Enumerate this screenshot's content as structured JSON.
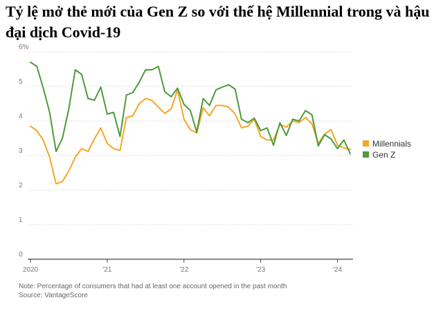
{
  "title": "Tỷ lệ mở thẻ mới của Gen Z so với thế hệ Millennial trong và hậu đại dịch Covid-19",
  "note": "Note: Percentage of consumers that had at least one account opened in the past month",
  "source": "Source: VantageScore",
  "chart_data": {
    "type": "line",
    "title": "Tỷ lệ mở thẻ mới của Gen Z so với thế hệ Millennial trong và hậu đại dịch Covid-19",
    "unit": "%",
    "y_ticks": [
      "6%",
      "5",
      "4",
      "3",
      "2",
      "1",
      "0"
    ],
    "x_ticks": [
      "2020",
      "'21",
      "'22",
      "'23",
      "'24"
    ],
    "ylim": [
      0,
      6
    ],
    "grid": "horizontal dotted",
    "legend_position": "right",
    "x": [
      "2020-01",
      "2020-02",
      "2020-03",
      "2020-04",
      "2020-05",
      "2020-06",
      "2020-07",
      "2020-08",
      "2020-09",
      "2020-10",
      "2020-11",
      "2020-12",
      "2021-01",
      "2021-02",
      "2021-03",
      "2021-04",
      "2021-05",
      "2021-06",
      "2021-07",
      "2021-08",
      "2021-09",
      "2021-10",
      "2021-11",
      "2021-12",
      "2022-01",
      "2022-02",
      "2022-03",
      "2022-04",
      "2022-05",
      "2022-06",
      "2022-07",
      "2022-08",
      "2022-09",
      "2022-10",
      "2022-11",
      "2022-12",
      "2023-01",
      "2023-02",
      "2023-03",
      "2023-04",
      "2023-05",
      "2023-06",
      "2023-07",
      "2023-08",
      "2023-09",
      "2023-10",
      "2023-11",
      "2023-12",
      "2024-01",
      "2024-02",
      "2024-03"
    ],
    "series": [
      {
        "name": "Millennials",
        "color": "#f5a623",
        "values": [
          3.85,
          3.72,
          3.45,
          2.95,
          2.18,
          2.25,
          2.55,
          2.95,
          3.2,
          3.12,
          3.48,
          3.8,
          3.35,
          3.2,
          3.15,
          4.1,
          4.15,
          4.5,
          4.65,
          4.6,
          4.4,
          4.22,
          4.35,
          4.9,
          4.05,
          3.75,
          3.65,
          4.38,
          4.15,
          4.45,
          4.45,
          4.4,
          4.2,
          3.8,
          3.85,
          4.05,
          3.55,
          3.45,
          3.45,
          3.9,
          3.82,
          4.0,
          3.95,
          4.1,
          3.92,
          3.35,
          3.62,
          3.75,
          3.3,
          3.22,
          3.18
        ]
      },
      {
        "name": "Gen Z",
        "color": "#4c9a3a",
        "values": [
          5.7,
          5.58,
          4.95,
          4.25,
          3.12,
          3.5,
          4.35,
          5.48,
          5.35,
          4.65,
          4.6,
          4.98,
          4.2,
          4.25,
          3.55,
          4.75,
          4.82,
          5.12,
          5.48,
          5.48,
          5.58,
          4.85,
          4.7,
          4.95,
          4.48,
          4.3,
          3.68,
          4.65,
          4.45,
          4.9,
          4.98,
          5.05,
          4.92,
          4.05,
          3.95,
          4.08,
          3.72,
          3.8,
          3.3,
          3.95,
          3.58,
          4.05,
          4.0,
          4.3,
          4.18,
          3.28,
          3.6,
          3.48,
          3.2,
          3.45,
          3.05
        ]
      }
    ]
  }
}
